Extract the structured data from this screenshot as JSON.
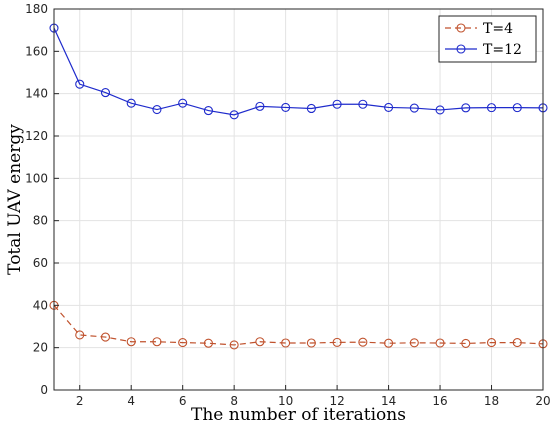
{
  "chart_data": {
    "type": "line",
    "xlabel": "The number of iterations",
    "ylabel": "Total UAV energy",
    "xlim": [
      1,
      20
    ],
    "ylim": [
      0,
      180
    ],
    "xticks": [
      2,
      4,
      6,
      8,
      10,
      12,
      14,
      16,
      18,
      20
    ],
    "yticks": [
      0,
      20,
      40,
      60,
      80,
      100,
      120,
      140,
      160,
      180
    ],
    "grid": true,
    "legend": "top-right",
    "x": [
      1,
      2,
      3,
      4,
      5,
      6,
      7,
      8,
      9,
      10,
      11,
      12,
      13,
      14,
      15,
      16,
      17,
      18,
      19,
      20
    ],
    "series": [
      {
        "name": "T=4",
        "color": "#C0522D",
        "line_style": "dashed",
        "marker": "circle",
        "values": [
          40,
          26,
          25,
          22.8,
          22.8,
          22.4,
          22.1,
          21.3,
          22.8,
          22.2,
          22.2,
          22.5,
          22.6,
          22.1,
          22.3,
          22.2,
          22.0,
          22.4,
          22.4,
          21.8
        ]
      },
      {
        "name": "T=12",
        "color": "#1F2BCC",
        "line_style": "solid",
        "marker": "circle",
        "values": [
          171,
          144.5,
          140.5,
          135.5,
          132.5,
          135.5,
          132,
          130,
          134,
          133.5,
          133,
          135,
          135,
          133.5,
          133.2,
          132.3,
          133.3,
          133.4,
          133.4,
          133.3
        ]
      }
    ]
  }
}
